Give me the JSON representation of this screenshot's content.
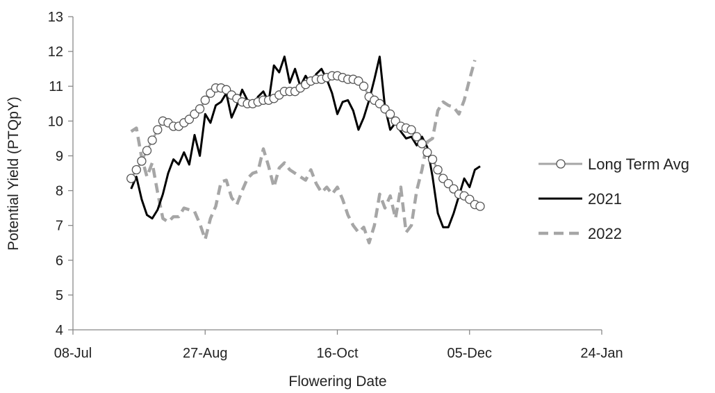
{
  "chart_data": {
    "type": "line",
    "xlabel": "Flowering Date",
    "ylabel": "Potential Yield (PTQpY)",
    "ylim": [
      4,
      13
    ],
    "yticks": [
      4,
      5,
      6,
      7,
      8,
      9,
      10,
      11,
      12,
      13
    ],
    "xlim": [
      "2021-07-08",
      "2022-01-24"
    ],
    "xticks": [
      {
        "date": "2021-07-08",
        "label": "08-Jul"
      },
      {
        "date": "2021-08-27",
        "label": "27-Aug"
      },
      {
        "date": "2021-10-16",
        "label": "16-Oct"
      },
      {
        "date": "2021-12-05",
        "label": "05-Dec"
      },
      {
        "date": "2022-01-24",
        "label": "24-Jan"
      }
    ],
    "grid": false,
    "legend_position": "right",
    "series": [
      {
        "name": "Long Term Avg",
        "color": "#a6a6a6",
        "style": "solid-markers",
        "points": [
          [
            "2021-07-30",
            8.35
          ],
          [
            "2021-08-01",
            8.6
          ],
          [
            "2021-08-03",
            8.85
          ],
          [
            "2021-08-05",
            9.15
          ],
          [
            "2021-08-07",
            9.45
          ],
          [
            "2021-08-09",
            9.75
          ],
          [
            "2021-08-11",
            10.0
          ],
          [
            "2021-08-13",
            9.95
          ],
          [
            "2021-08-15",
            9.85
          ],
          [
            "2021-08-17",
            9.85
          ],
          [
            "2021-08-19",
            9.95
          ],
          [
            "2021-08-21",
            10.05
          ],
          [
            "2021-08-23",
            10.2
          ],
          [
            "2021-08-25",
            10.35
          ],
          [
            "2021-08-27",
            10.6
          ],
          [
            "2021-08-29",
            10.8
          ],
          [
            "2021-08-31",
            10.95
          ],
          [
            "2021-09-02",
            10.95
          ],
          [
            "2021-09-04",
            10.9
          ],
          [
            "2021-09-06",
            10.75
          ],
          [
            "2021-09-08",
            10.65
          ],
          [
            "2021-09-10",
            10.55
          ],
          [
            "2021-09-12",
            10.5
          ],
          [
            "2021-09-14",
            10.5
          ],
          [
            "2021-09-16",
            10.55
          ],
          [
            "2021-09-18",
            10.6
          ],
          [
            "2021-09-20",
            10.6
          ],
          [
            "2021-09-22",
            10.65
          ],
          [
            "2021-09-24",
            10.75
          ],
          [
            "2021-09-26",
            10.85
          ],
          [
            "2021-09-28",
            10.85
          ],
          [
            "2021-09-30",
            10.85
          ],
          [
            "2021-10-02",
            10.95
          ],
          [
            "2021-10-04",
            11.05
          ],
          [
            "2021-10-06",
            11.15
          ],
          [
            "2021-10-08",
            11.2
          ],
          [
            "2021-10-10",
            11.2
          ],
          [
            "2021-10-12",
            11.25
          ],
          [
            "2021-10-14",
            11.3
          ],
          [
            "2021-10-16",
            11.3
          ],
          [
            "2021-10-18",
            11.25
          ],
          [
            "2021-10-20",
            11.2
          ],
          [
            "2021-10-22",
            11.2
          ],
          [
            "2021-10-24",
            11.15
          ],
          [
            "2021-10-26",
            11.0
          ],
          [
            "2021-10-28",
            10.7
          ],
          [
            "2021-10-30",
            10.6
          ],
          [
            "2021-11-01",
            10.5
          ],
          [
            "2021-11-03",
            10.35
          ],
          [
            "2021-11-05",
            10.2
          ],
          [
            "2021-11-07",
            10.0
          ],
          [
            "2021-11-09",
            9.85
          ],
          [
            "2021-11-11",
            9.8
          ],
          [
            "2021-11-13",
            9.75
          ],
          [
            "2021-11-15",
            9.55
          ],
          [
            "2021-11-17",
            9.35
          ],
          [
            "2021-11-19",
            9.1
          ],
          [
            "2021-11-21",
            8.9
          ],
          [
            "2021-11-23",
            8.6
          ],
          [
            "2021-11-25",
            8.35
          ],
          [
            "2021-11-27",
            8.2
          ],
          [
            "2021-11-29",
            8.05
          ],
          [
            "2021-12-01",
            7.9
          ],
          [
            "2021-12-03",
            7.85
          ],
          [
            "2021-12-05",
            7.75
          ],
          [
            "2021-12-07",
            7.6
          ],
          [
            "2021-12-09",
            7.55
          ]
        ]
      },
      {
        "name": "2021",
        "color": "#000000",
        "style": "solid",
        "points": [
          [
            "2021-07-30",
            8.05
          ],
          [
            "2021-08-01",
            8.4
          ],
          [
            "2021-08-03",
            7.75
          ],
          [
            "2021-08-05",
            7.3
          ],
          [
            "2021-08-07",
            7.2
          ],
          [
            "2021-08-09",
            7.45
          ],
          [
            "2021-08-11",
            7.9
          ],
          [
            "2021-08-13",
            8.5
          ],
          [
            "2021-08-15",
            8.9
          ],
          [
            "2021-08-17",
            8.75
          ],
          [
            "2021-08-19",
            9.1
          ],
          [
            "2021-08-21",
            8.75
          ],
          [
            "2021-08-23",
            9.6
          ],
          [
            "2021-08-25",
            9.0
          ],
          [
            "2021-08-27",
            10.2
          ],
          [
            "2021-08-29",
            9.95
          ],
          [
            "2021-08-31",
            10.45
          ],
          [
            "2021-09-02",
            10.55
          ],
          [
            "2021-09-04",
            10.8
          ],
          [
            "2021-09-06",
            10.1
          ],
          [
            "2021-09-08",
            10.45
          ],
          [
            "2021-09-10",
            10.9
          ],
          [
            "2021-09-12",
            10.6
          ],
          [
            "2021-09-14",
            10.4
          ],
          [
            "2021-09-16",
            10.7
          ],
          [
            "2021-09-18",
            10.85
          ],
          [
            "2021-09-20",
            10.55
          ],
          [
            "2021-09-22",
            11.6
          ],
          [
            "2021-09-24",
            11.4
          ],
          [
            "2021-09-26",
            11.85
          ],
          [
            "2021-09-28",
            11.1
          ],
          [
            "2021-09-30",
            11.5
          ],
          [
            "2021-10-02",
            11.0
          ],
          [
            "2021-10-04",
            11.3
          ],
          [
            "2021-10-06",
            11.05
          ],
          [
            "2021-10-08",
            11.35
          ],
          [
            "2021-10-10",
            11.5
          ],
          [
            "2021-10-12",
            11.2
          ],
          [
            "2021-10-14",
            10.8
          ],
          [
            "2021-10-16",
            10.2
          ],
          [
            "2021-10-18",
            10.55
          ],
          [
            "2021-10-20",
            10.6
          ],
          [
            "2021-10-22",
            10.3
          ],
          [
            "2021-10-24",
            9.75
          ],
          [
            "2021-10-26",
            10.1
          ],
          [
            "2021-10-28",
            10.6
          ],
          [
            "2021-10-30",
            11.2
          ],
          [
            "2021-11-01",
            11.85
          ],
          [
            "2021-11-03",
            10.4
          ],
          [
            "2021-11-05",
            9.75
          ],
          [
            "2021-11-07",
            9.95
          ],
          [
            "2021-11-09",
            9.7
          ],
          [
            "2021-11-11",
            9.5
          ],
          [
            "2021-11-13",
            9.55
          ],
          [
            "2021-11-15",
            9.3
          ],
          [
            "2021-11-17",
            9.55
          ],
          [
            "2021-11-19",
            9.25
          ],
          [
            "2021-11-21",
            8.4
          ],
          [
            "2021-11-23",
            7.35
          ],
          [
            "2021-11-25",
            6.95
          ],
          [
            "2021-11-27",
            6.95
          ],
          [
            "2021-11-29",
            7.35
          ],
          [
            "2021-12-01",
            7.85
          ],
          [
            "2021-12-03",
            8.35
          ],
          [
            "2021-12-05",
            8.1
          ],
          [
            "2021-12-07",
            8.6
          ],
          [
            "2021-12-09",
            8.7
          ]
        ]
      },
      {
        "name": "2022",
        "color": "#a6a6a6",
        "style": "dashed",
        "points": [
          [
            "2021-07-30",
            9.7
          ],
          [
            "2021-08-01",
            9.8
          ],
          [
            "2021-08-03",
            8.95
          ],
          [
            "2021-08-05",
            8.4
          ],
          [
            "2021-08-07",
            8.8
          ],
          [
            "2021-08-09",
            7.95
          ],
          [
            "2021-08-11",
            7.2
          ],
          [
            "2021-08-13",
            7.1
          ],
          [
            "2021-08-15",
            7.25
          ],
          [
            "2021-08-17",
            7.25
          ],
          [
            "2021-08-19",
            7.5
          ],
          [
            "2021-08-21",
            7.45
          ],
          [
            "2021-08-23",
            7.4
          ],
          [
            "2021-08-25",
            7.05
          ],
          [
            "2021-08-27",
            6.6
          ],
          [
            "2021-08-29",
            7.2
          ],
          [
            "2021-08-31",
            7.55
          ],
          [
            "2021-09-02",
            8.25
          ],
          [
            "2021-09-04",
            8.3
          ],
          [
            "2021-09-06",
            7.8
          ],
          [
            "2021-09-08",
            7.6
          ],
          [
            "2021-09-10",
            8.0
          ],
          [
            "2021-09-12",
            8.35
          ],
          [
            "2021-09-14",
            8.5
          ],
          [
            "2021-09-16",
            8.55
          ],
          [
            "2021-09-18",
            9.2
          ],
          [
            "2021-09-20",
            8.7
          ],
          [
            "2021-09-22",
            8.1
          ],
          [
            "2021-09-24",
            8.65
          ],
          [
            "2021-09-26",
            8.8
          ],
          [
            "2021-09-28",
            8.6
          ],
          [
            "2021-09-30",
            8.5
          ],
          [
            "2021-10-02",
            8.4
          ],
          [
            "2021-10-04",
            8.3
          ],
          [
            "2021-10-06",
            8.6
          ],
          [
            "2021-10-08",
            8.2
          ],
          [
            "2021-10-10",
            7.95
          ],
          [
            "2021-10-12",
            8.1
          ],
          [
            "2021-10-14",
            7.9
          ],
          [
            "2021-10-16",
            8.1
          ],
          [
            "2021-10-18",
            7.75
          ],
          [
            "2021-10-20",
            7.3
          ],
          [
            "2021-10-22",
            7.0
          ],
          [
            "2021-10-24",
            6.8
          ],
          [
            "2021-10-26",
            6.95
          ],
          [
            "2021-10-28",
            6.5
          ],
          [
            "2021-10-30",
            7.0
          ],
          [
            "2021-11-01",
            7.9
          ],
          [
            "2021-11-03",
            7.5
          ],
          [
            "2021-11-05",
            7.85
          ],
          [
            "2021-11-07",
            7.2
          ],
          [
            "2021-11-09",
            8.1
          ],
          [
            "2021-11-11",
            6.8
          ],
          [
            "2021-11-13",
            7.0
          ],
          [
            "2021-11-15",
            8.0
          ],
          [
            "2021-11-17",
            8.6
          ],
          [
            "2021-11-19",
            9.4
          ],
          [
            "2021-11-21",
            9.5
          ],
          [
            "2021-11-23",
            10.3
          ],
          [
            "2021-11-25",
            10.55
          ],
          [
            "2021-11-27",
            10.45
          ],
          [
            "2021-11-29",
            10.4
          ],
          [
            "2021-12-01",
            10.2
          ],
          [
            "2021-12-03",
            10.6
          ],
          [
            "2021-12-05",
            11.2
          ],
          [
            "2021-12-07",
            11.75
          ]
        ]
      }
    ]
  }
}
